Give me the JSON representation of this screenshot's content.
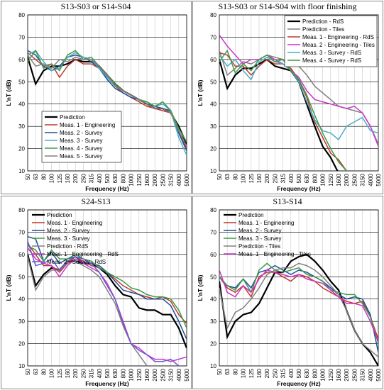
{
  "chart_data": [
    {
      "type": "line",
      "title": "S13-S03 or S14-S04",
      "x_label": "Frequency (Hz)",
      "y_label": "L'nT (dB)",
      "categories": [
        "50",
        "63",
        "80",
        "100",
        "125",
        "160",
        "200",
        "250",
        "315",
        "400",
        "500",
        "630",
        "800",
        "1000",
        "1250",
        "1600",
        "2000",
        "2500",
        "3150",
        "4000",
        "5000"
      ],
      "ylim": [
        10,
        80
      ],
      "yticks": [
        10,
        20,
        30,
        40,
        50,
        60,
        70,
        80
      ],
      "grid": true,
      "legend": "lower left",
      "legend_box": true,
      "series": [
        {
          "name": "Prediction",
          "color": "#000000",
          "values": [
            61,
            49,
            55,
            57,
            57,
            58,
            60,
            59,
            59,
            57,
            53,
            49,
            46,
            44,
            42,
            40,
            38,
            38,
            36,
            30,
            22
          ]
        },
        {
          "name": "Meas. 1 - Engineering",
          "color": "#c0392b",
          "values": [
            63,
            60,
            57,
            58,
            52,
            57,
            60,
            58,
            58,
            56,
            52,
            48,
            45,
            43,
            41,
            39,
            38,
            37,
            36,
            28,
            20
          ]
        },
        {
          "name": "Meas. 2 - Survey",
          "color": "#1f4e9a",
          "values": [
            64,
            62,
            57,
            55,
            57,
            61,
            62,
            61,
            59,
            56,
            51,
            47,
            45,
            43,
            42,
            40,
            39,
            38,
            37,
            27,
            19
          ]
        },
        {
          "name": "Meas. 3 - Survey",
          "color": "#4bacc6",
          "values": [
            62,
            64,
            59,
            55,
            56,
            61,
            63,
            61,
            60,
            56,
            52,
            48,
            46,
            44,
            42,
            41,
            39,
            40,
            37,
            25,
            17
          ]
        },
        {
          "name": "Meas. 4 - Survey",
          "color": "#3e9a48",
          "values": [
            59,
            64,
            56,
            58,
            55,
            62,
            64,
            60,
            61,
            57,
            53,
            49,
            46,
            44,
            42,
            41,
            39,
            41,
            37,
            29,
            23
          ]
        },
        {
          "name": "Meas. 5 - Survey",
          "color": "#808080",
          "values": [
            62,
            57,
            58,
            56,
            60,
            59,
            61,
            60,
            60,
            57,
            53,
            48,
            46,
            44,
            42,
            40,
            38,
            38,
            36,
            28,
            21
          ]
        }
      ]
    },
    {
      "type": "line",
      "title": "S13-S03 or S14-S04 with floor finishing",
      "x_label": "Frequency (Hz)",
      "y_label": "L'nT (dB)",
      "categories": [
        "50",
        "63",
        "80",
        "100",
        "125",
        "160",
        "200",
        "250",
        "315",
        "400",
        "500",
        "630",
        "800",
        "1000",
        "1250",
        "1600",
        "2000",
        "2500",
        "3150",
        "4000",
        "5000"
      ],
      "ylim": [
        10,
        80
      ],
      "yticks": [
        10,
        20,
        30,
        40,
        50,
        60,
        70,
        80
      ],
      "grid": true,
      "legend": "upper right",
      "legend_box": true,
      "series": [
        {
          "name": "Prediction - RdS",
          "color": "#000000",
          "values": [
            60,
            47,
            53,
            56,
            56,
            58,
            60,
            57,
            56,
            55,
            50,
            40,
            30,
            21,
            16,
            9,
            null,
            null,
            null,
            null,
            null
          ]
        },
        {
          "name": "Prediction - Tiles",
          "color": "#808080",
          "values": [
            64,
            53,
            56,
            59,
            58,
            60,
            62,
            61,
            60,
            59,
            57,
            53,
            48,
            45,
            42,
            39,
            38,
            37,
            36,
            30,
            22
          ]
        },
        {
          "name": "Meas. 1 - Engineering - RdS",
          "color": "#c0392b",
          "values": [
            63,
            62,
            57,
            57,
            53,
            57,
            60,
            58,
            58,
            56,
            51,
            43,
            32,
            25,
            18,
            15,
            10,
            null,
            null,
            null,
            null
          ]
        },
        {
          "name": "Meas. 2 - Engineering - Tiles",
          "color": "#cc33cc",
          "values": [
            71,
            66,
            62,
            58,
            60,
            60,
            62,
            60,
            58,
            55,
            52,
            46,
            42,
            41,
            40,
            39,
            38,
            39,
            36,
            30,
            21
          ]
        },
        {
          "name": "Meas. 3 - Survey - RdS",
          "color": "#4bacc6",
          "values": [
            62,
            57,
            60,
            55,
            51,
            59,
            61,
            59,
            58,
            55,
            50,
            41,
            33,
            28,
            27,
            24,
            30,
            32,
            34,
            28,
            27
          ]
        },
        {
          "name": "Meas. 4 - Survey - RdS",
          "color": "#3e9a48",
          "values": [
            59,
            64,
            54,
            58,
            55,
            60,
            62,
            59,
            60,
            55,
            51,
            44,
            35,
            27,
            20,
            14,
            10,
            null,
            null,
            null,
            null
          ]
        }
      ]
    },
    {
      "type": "line",
      "title": "S24-S13",
      "x_label": "Frequency (Hz)",
      "y_label": "L'nT (dB)",
      "categories": [
        "50",
        "63",
        "80",
        "100",
        "125",
        "160",
        "200",
        "250",
        "315",
        "400",
        "500",
        "630",
        "800",
        "1000",
        "1250",
        "1600",
        "2000",
        "2500",
        "3150",
        "4000",
        "5000"
      ],
      "ylim": [
        10,
        80
      ],
      "yticks": [
        10,
        20,
        30,
        40,
        50,
        60,
        70,
        80
      ],
      "grid": true,
      "legend": "upper left",
      "legend_box": false,
      "series": [
        {
          "name": "Prediction",
          "color": "#000000",
          "values": [
            60,
            46,
            51,
            54,
            53,
            57,
            57,
            56,
            56,
            54,
            51,
            46,
            42,
            41,
            36,
            35,
            35,
            33,
            33,
            27,
            18
          ]
        },
        {
          "name": "Meas. 1 - Engineering",
          "color": "#c0392b",
          "values": [
            65,
            60,
            55,
            55,
            52,
            56,
            59,
            57,
            55,
            54,
            52,
            49,
            46,
            44,
            42,
            41,
            40,
            41,
            39,
            33,
            29
          ]
        },
        {
          "name": "Meas. 2 - Survey",
          "color": "#1f4e9a",
          "values": [
            68,
            67,
            57,
            61,
            56,
            58,
            59,
            56,
            56,
            55,
            52,
            48,
            44,
            43,
            42,
            40,
            40,
            40,
            37,
            30,
            22
          ]
        },
        {
          "name": "Meas. 3 - Survey",
          "color": "#3e9a48",
          "values": [
            64,
            62,
            57,
            62,
            58,
            58,
            60,
            58,
            57,
            54,
            52,
            50,
            48,
            45,
            44,
            42,
            41,
            41,
            40,
            35,
            27
          ]
        },
        {
          "name": "Prediction - RdS",
          "color": "#808080",
          "values": [
            59,
            44,
            50,
            53,
            53,
            56,
            57,
            55,
            53,
            50,
            44,
            38,
            28,
            20,
            15,
            10,
            null,
            null,
            null,
            null,
            null
          ]
        },
        {
          "name": "Meas. 1 - Engineering - RdS",
          "color": "#cc33cc",
          "values": [
            63,
            58,
            56,
            55,
            50,
            55,
            58,
            56,
            54,
            52,
            47,
            40,
            30,
            20,
            18,
            15,
            13,
            13,
            12,
            13,
            14
          ]
        },
        {
          "name": "Meas. 2 - Survey - RdS",
          "color": "#6a5acd",
          "values": [
            66,
            55,
            56,
            58,
            53,
            57,
            59,
            58,
            56,
            52,
            46,
            40,
            29,
            20,
            17,
            15,
            12,
            12,
            13,
            10,
            null
          ]
        }
      ]
    },
    {
      "type": "line",
      "title": "S13-S14",
      "x_label": "Frequency (Hz)",
      "y_label": "L'nT (dB)",
      "categories": [
        "50",
        "63",
        "80",
        "100",
        "125",
        "160",
        "200",
        "250",
        "315",
        "400",
        "500",
        "630",
        "800",
        "1000",
        "1250",
        "1600",
        "2000",
        "2500",
        "3150",
        "4000",
        "5000"
      ],
      "ylim": [
        10,
        80
      ],
      "yticks": [
        10,
        20,
        30,
        40,
        50,
        60,
        70,
        80
      ],
      "grid": true,
      "legend": "upper left",
      "legend_box": false,
      "series": [
        {
          "name": "Prediction",
          "color": "#000000",
          "values": [
            48,
            23,
            30,
            33,
            34,
            38,
            45,
            52,
            52,
            57,
            59,
            60,
            57,
            53,
            48,
            44,
            35,
            26,
            20,
            16,
            10
          ]
        },
        {
          "name": "Meas. 1 - Engineering",
          "color": "#c0392b",
          "values": [
            50,
            45,
            43,
            46,
            41,
            50,
            52,
            52,
            50,
            48,
            51,
            50,
            48,
            45,
            43,
            41,
            39,
            38,
            39,
            32,
            22
          ]
        },
        {
          "name": "Meas. 2 - Survey",
          "color": "#1f4e9a",
          "values": [
            50,
            46,
            45,
            49,
            45,
            52,
            53,
            55,
            53,
            51,
            53,
            52,
            50,
            48,
            45,
            42,
            40,
            41,
            40,
            33,
            16
          ]
        },
        {
          "name": "Meas. 3 - Survey",
          "color": "#3e9a48",
          "values": [
            50,
            46,
            44,
            49,
            43,
            53,
            56,
            53,
            52,
            53,
            54,
            51,
            50,
            48,
            44,
            43,
            42,
            42,
            38,
            32,
            20
          ]
        },
        {
          "name": "Prediction - Tiles",
          "color": "#808080",
          "values": [
            45,
            27,
            34,
            36,
            40,
            45,
            51,
            53,
            54,
            54,
            56,
            55,
            53,
            50,
            46,
            42,
            35,
            26,
            20,
            17,
            14
          ]
        },
        {
          "name": "Meas. 1 - Engineering - Tiles",
          "color": "#cc33cc",
          "values": [
            53,
            43,
            41,
            46,
            43,
            49,
            53,
            52,
            51,
            50,
            51,
            49,
            48,
            47,
            44,
            41,
            38,
            38,
            37,
            30,
            21
          ]
        }
      ]
    }
  ]
}
